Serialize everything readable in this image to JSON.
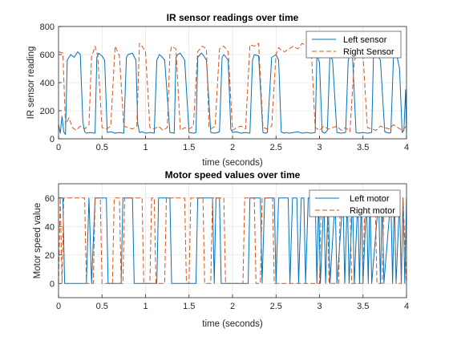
{
  "chart_data": [
    {
      "type": "line",
      "title": "IR sensor readings over time",
      "xlabel": "time (seconds)",
      "ylabel": "IR sensor reading",
      "xlim": [
        0,
        4
      ],
      "ylim": [
        0,
        800
      ],
      "xticks": [
        0,
        0.5,
        1,
        1.5,
        2,
        2.5,
        3,
        3.5,
        4
      ],
      "xtick_labels": [
        "0",
        "0.5",
        "1",
        "1.5",
        "2",
        "2.5",
        "3",
        "3.5",
        "4"
      ],
      "yticks": [
        0,
        200,
        400,
        600,
        800
      ],
      "ytick_labels": [
        "0",
        "200",
        "400",
        "600",
        "800"
      ],
      "grid": true,
      "legend_position": "top-right",
      "series": [
        {
          "name": "Left sensor",
          "color": "#0072bd",
          "style": "solid",
          "x": [
            0.0,
            0.02,
            0.04,
            0.06,
            0.08,
            0.1,
            0.14,
            0.18,
            0.22,
            0.25,
            0.28,
            0.3,
            0.32,
            0.36,
            0.42,
            0.44,
            0.46,
            0.48,
            0.5,
            0.53,
            0.56,
            0.6,
            0.65,
            0.7,
            0.75,
            0.78,
            0.8,
            0.85,
            0.89,
            0.91,
            0.93,
            0.96,
            1.0,
            1.05,
            1.1,
            1.13,
            1.16,
            1.18,
            1.22,
            1.28,
            1.33,
            1.35,
            1.37,
            1.4,
            1.45,
            1.5,
            1.55,
            1.58,
            1.6,
            1.64,
            1.66,
            1.7,
            1.75,
            1.8,
            1.85,
            1.88,
            1.9,
            1.95,
            1.98,
            2.0,
            2.04,
            2.1,
            2.15,
            2.2,
            2.23,
            2.25,
            2.3,
            2.35,
            2.38,
            2.4,
            2.45,
            2.5,
            2.53,
            2.56,
            2.59,
            2.61,
            2.65,
            2.7,
            2.75,
            2.8,
            2.85,
            2.9,
            2.95,
            2.97,
            3.0,
            3.03,
            3.06,
            3.09,
            3.12,
            3.15,
            3.2,
            3.25,
            3.3,
            3.33,
            3.35,
            3.38,
            3.42,
            3.45,
            3.5,
            3.55,
            3.6,
            3.62,
            3.66,
            3.7,
            3.75,
            3.8,
            3.82,
            3.85,
            3.88,
            3.92,
            3.95,
            3.97,
            3.99,
            4.0
          ],
          "y": [
            100,
            40,
            160,
            50,
            30,
            560,
            600,
            580,
            620,
            600,
            120,
            50,
            40,
            45,
            40,
            580,
            610,
            600,
            590,
            560,
            45,
            50,
            40,
            45,
            40,
            580,
            600,
            610,
            560,
            110,
            45,
            50,
            40,
            45,
            40,
            560,
            600,
            590,
            560,
            45,
            40,
            580,
            600,
            610,
            560,
            45,
            40,
            45,
            580,
            610,
            600,
            560,
            45,
            40,
            50,
            580,
            600,
            560,
            70,
            45,
            50,
            40,
            45,
            40,
            560,
            600,
            590,
            45,
            40,
            45,
            580,
            600,
            560,
            50,
            40,
            45,
            40,
            45,
            50,
            40,
            45,
            40,
            45,
            600,
            540,
            50,
            40,
            60,
            600,
            560,
            45,
            40,
            45,
            560,
            600,
            580,
            45,
            40,
            45,
            40,
            45,
            580,
            600,
            560,
            50,
            40,
            45,
            580,
            620,
            500,
            45,
            60,
            350,
            50
          ]
        },
        {
          "name": "Right Sensor",
          "color": "#d95319",
          "style": "dashed",
          "x": [
            0.0,
            0.05,
            0.08,
            0.12,
            0.16,
            0.2,
            0.25,
            0.3,
            0.35,
            0.38,
            0.4,
            0.42,
            0.45,
            0.5,
            0.55,
            0.6,
            0.65,
            0.7,
            0.75,
            0.8,
            0.85,
            0.9,
            0.93,
            0.96,
            1.0,
            1.05,
            1.1,
            1.15,
            1.2,
            1.25,
            1.28,
            1.3,
            1.35,
            1.4,
            1.45,
            1.5,
            1.55,
            1.6,
            1.65,
            1.7,
            1.73,
            1.75,
            1.8,
            1.85,
            1.9,
            1.95,
            2.0,
            2.05,
            2.1,
            2.15,
            2.2,
            2.25,
            2.3,
            2.35,
            2.4,
            2.45,
            2.5,
            2.53,
            2.56,
            2.6,
            2.65,
            2.7,
            2.75,
            2.8,
            2.85,
            2.9,
            2.95,
            3.0,
            3.05,
            3.1,
            3.15,
            3.2,
            3.25,
            3.3,
            3.35,
            3.4,
            3.45,
            3.5,
            3.55,
            3.6,
            3.65,
            3.7,
            3.75,
            3.8,
            3.85,
            3.9,
            3.95,
            4.0
          ],
          "y": [
            620,
            610,
            100,
            150,
            80,
            60,
            90,
            70,
            100,
            590,
            620,
            660,
            590,
            80,
            70,
            90,
            660,
            590,
            90,
            80,
            70,
            90,
            680,
            660,
            620,
            80,
            70,
            90,
            60,
            80,
            600,
            660,
            640,
            60,
            80,
            70,
            90,
            620,
            660,
            640,
            80,
            70,
            90,
            640,
            660,
            620,
            60,
            80,
            90,
            70,
            670,
            660,
            680,
            80,
            70,
            90,
            600,
            650,
            630,
            620,
            640,
            660,
            640,
            680,
            660,
            700,
            80,
            60,
            90,
            70,
            80,
            90,
            60,
            80,
            50,
            560,
            620,
            600,
            80,
            70,
            60,
            90,
            80,
            70,
            100,
            80,
            60,
            90
          ]
        }
      ]
    },
    {
      "type": "line",
      "title": "Motor speed values over time",
      "xlabel": "time (seconds)",
      "ylabel": "Motor speed value",
      "xlim": [
        0,
        4
      ],
      "ylim": [
        -10,
        70
      ],
      "xticks": [
        0,
        0.5,
        1,
        1.5,
        2,
        2.5,
        3,
        3.5,
        4
      ],
      "xtick_labels": [
        "0",
        "0.5",
        "1",
        "1.5",
        "2",
        "2.5",
        "3",
        "3.5",
        "4"
      ],
      "yticks": [
        0,
        20,
        40,
        60
      ],
      "ytick_labels": [
        "0",
        "20",
        "40",
        "60"
      ],
      "grid": true,
      "legend_position": "top-right",
      "series": [
        {
          "name": "Left motor",
          "color": "#0072bd",
          "style": "solid",
          "x": [
            0.0,
            0.05,
            0.07,
            0.1,
            0.32,
            0.35,
            0.38,
            0.42,
            0.44,
            0.55,
            0.57,
            0.6,
            0.72,
            0.74,
            0.8,
            0.85,
            0.87,
            0.9,
            1.13,
            1.15,
            1.18,
            1.28,
            1.3,
            1.35,
            1.58,
            1.6,
            1.63,
            1.77,
            1.79,
            1.81,
            1.83,
            1.85,
            1.87,
            1.89,
            2.18,
            2.2,
            2.23,
            2.32,
            2.34,
            2.37,
            2.48,
            2.5,
            2.53,
            2.64,
            2.66,
            2.69,
            2.74,
            2.76,
            2.79,
            2.82,
            2.84,
            2.87,
            2.95,
            2.97,
            2.99,
            3.01,
            3.05,
            3.07,
            3.1,
            3.12,
            3.18,
            3.2,
            3.27,
            3.29,
            3.32,
            3.34,
            3.38,
            3.4,
            3.44,
            3.46,
            3.48,
            3.5,
            3.54,
            3.56,
            3.58,
            3.6,
            3.68,
            3.7,
            3.72,
            3.74,
            3.82,
            3.84,
            3.86,
            3.88,
            3.92,
            3.94,
            3.96,
            3.98,
            4.0
          ],
          "y": [
            60,
            60,
            0,
            0,
            0,
            60,
            0,
            60,
            60,
            60,
            0,
            0,
            0,
            60,
            60,
            60,
            0,
            0,
            0,
            60,
            60,
            60,
            0,
            0,
            0,
            60,
            60,
            60,
            0,
            60,
            60,
            60,
            0,
            0,
            0,
            60,
            60,
            60,
            0,
            60,
            60,
            0,
            60,
            60,
            0,
            60,
            60,
            0,
            60,
            60,
            0,
            60,
            60,
            0,
            60,
            0,
            60,
            0,
            60,
            0,
            60,
            0,
            60,
            0,
            60,
            0,
            60,
            0,
            60,
            0,
            60,
            0,
            60,
            0,
            60,
            0,
            60,
            0,
            60,
            0,
            60,
            0,
            60,
            0,
            60,
            0,
            60,
            0,
            60
          ]
        },
        {
          "name": "Right motor",
          "color": "#d95319",
          "style": "dashed",
          "x": [
            0.0,
            0.02,
            0.04,
            0.06,
            0.08,
            0.3,
            0.32,
            0.34,
            0.4,
            0.42,
            0.48,
            0.5,
            0.62,
            0.64,
            0.7,
            0.72,
            0.74,
            0.76,
            0.96,
            0.98,
            1.05,
            1.07,
            1.1,
            1.12,
            1.22,
            1.24,
            1.45,
            1.47,
            1.5,
            1.52,
            1.66,
            1.68,
            1.75,
            1.77,
            1.9,
            1.92,
            2.12,
            2.14,
            2.25,
            2.27,
            2.32,
            2.34,
            2.46,
            2.48,
            3.0,
            3.02,
            3.09,
            3.11,
            3.22,
            3.24,
            3.35,
            3.37,
            3.5,
            3.52,
            3.64,
            3.66,
            3.72,
            3.74,
            3.86,
            3.88,
            3.94,
            3.96,
            4.0
          ],
          "y": [
            0,
            60,
            0,
            60,
            60,
            60,
            0,
            0,
            0,
            60,
            60,
            0,
            0,
            60,
            60,
            0,
            0,
            60,
            60,
            0,
            0,
            60,
            60,
            0,
            0,
            60,
            60,
            0,
            0,
            60,
            60,
            0,
            0,
            60,
            60,
            0,
            0,
            60,
            60,
            0,
            0,
            60,
            60,
            0,
            0,
            60,
            60,
            0,
            0,
            60,
            60,
            0,
            0,
            60,
            60,
            0,
            0,
            60,
            60,
            0,
            0,
            60,
            0
          ]
        }
      ]
    }
  ]
}
